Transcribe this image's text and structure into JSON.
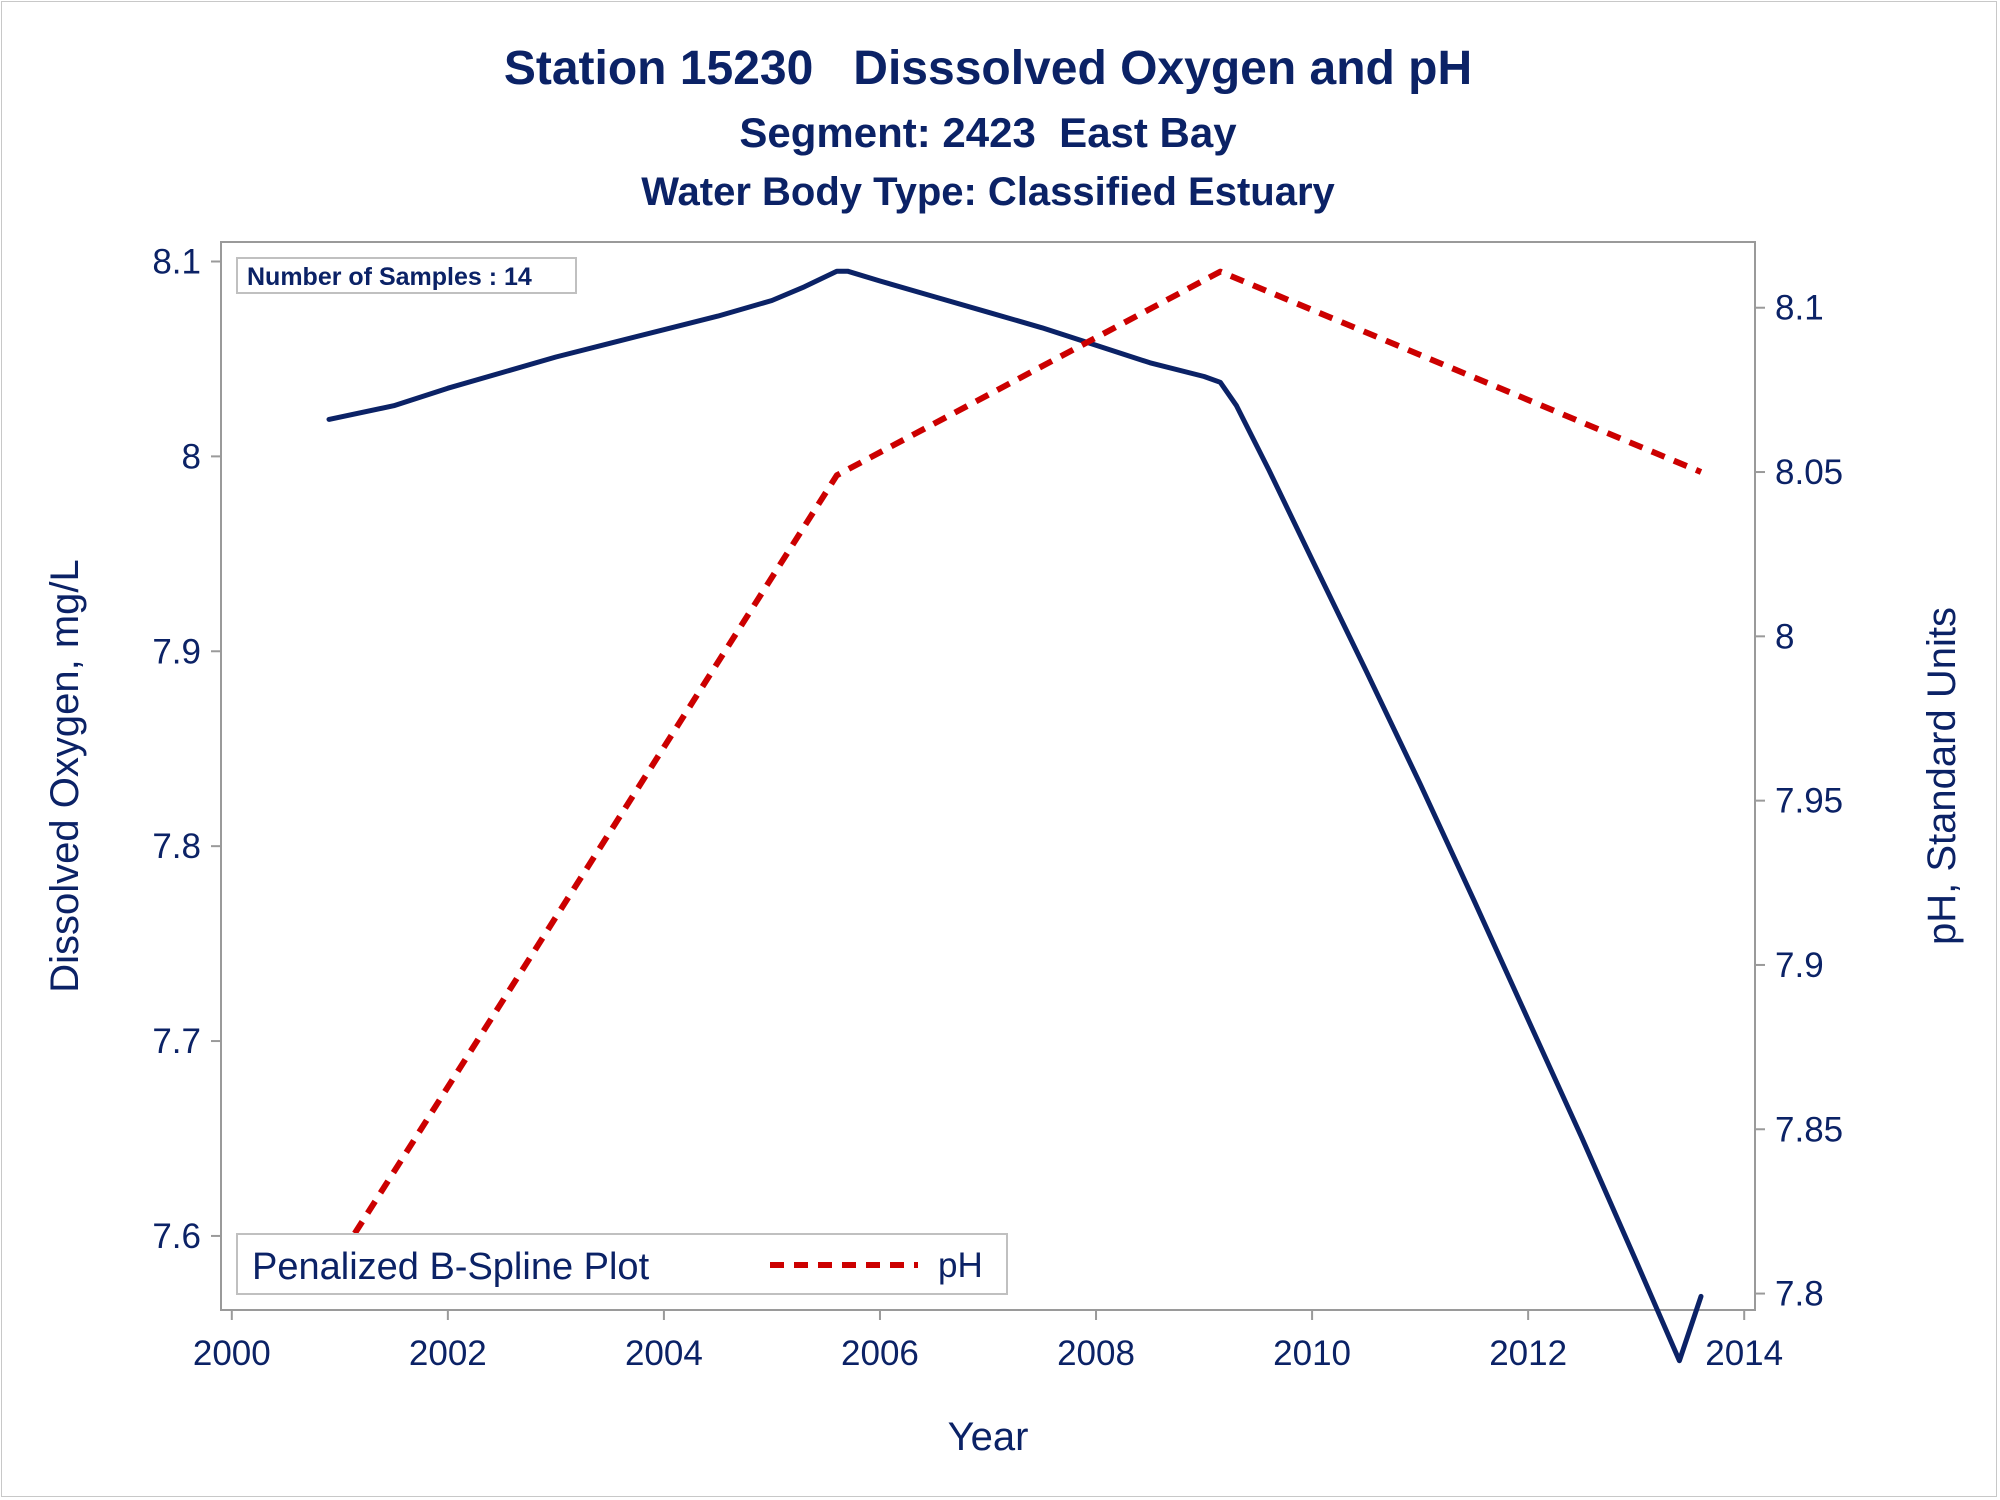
{
  "chart_data": {
    "type": "line",
    "title": "Station 15230   Disssolved Oxygen and pH",
    "subtitle": "Segment: 2423  East Bay",
    "subtitle2": "Water Body Type: Classified Estuary",
    "xlabel": "Year",
    "ylabel": "Dissolved Oxygen, mg/L",
    "y2label": "pH, Standard Units",
    "xlim": [
      1999.9,
      2014.1
    ],
    "ylim": [
      7.562,
      8.11
    ],
    "y2lim": [
      7.795,
      8.12
    ],
    "x_ticks": [
      2000,
      2002,
      2004,
      2006,
      2008,
      2010,
      2012,
      2014
    ],
    "y_ticks": [
      7.6,
      7.7,
      7.8,
      7.9,
      8,
      8.1
    ],
    "y2_ticks": [
      7.8,
      7.85,
      7.9,
      7.95,
      8,
      8.05,
      8.1
    ],
    "grid": false,
    "inset_label": "Number of Samples : 14",
    "legend": {
      "title": "Penalized B-Spline Plot",
      "position": "bottom-left",
      "entries": [
        "pH"
      ]
    },
    "series": [
      {
        "axis": "y",
        "color": "#0b2266",
        "style": "solid",
        "x": [
          2000.9,
          2001.5,
          2002.0,
          2002.5,
          2003.0,
          2003.5,
          2004.0,
          2004.5,
          2005.0,
          2005.3,
          2005.6,
          2005.7,
          2006.0,
          2006.5,
          2007.0,
          2007.5,
          2008.0,
          2008.5,
          2009.0,
          2009.15,
          2009.3,
          2009.6,
          2010.0,
          2010.5,
          2011.0,
          2011.5,
          2012.0,
          2012.5,
          2013.0,
          2013.4,
          2013.6
        ],
        "values": [
          8.019,
          8.026,
          8.035,
          8.043,
          8.051,
          8.058,
          8.065,
          8.072,
          8.08,
          8.087,
          8.095,
          8.095,
          8.09,
          8.082,
          8.074,
          8.066,
          8.057,
          8.048,
          8.041,
          8.038,
          8.026,
          7.993,
          7.947,
          7.89,
          7.832,
          7.772,
          7.711,
          7.65,
          7.587,
          7.536,
          7.569
        ]
      },
      {
        "name": "pH",
        "axis": "y2",
        "color": "#cc0000",
        "style": "dashed",
        "x": [
          2000.9,
          2005.6,
          2009.15,
          2013.6
        ],
        "values": [
          7.806,
          8.049,
          8.111,
          8.05
        ]
      }
    ]
  }
}
